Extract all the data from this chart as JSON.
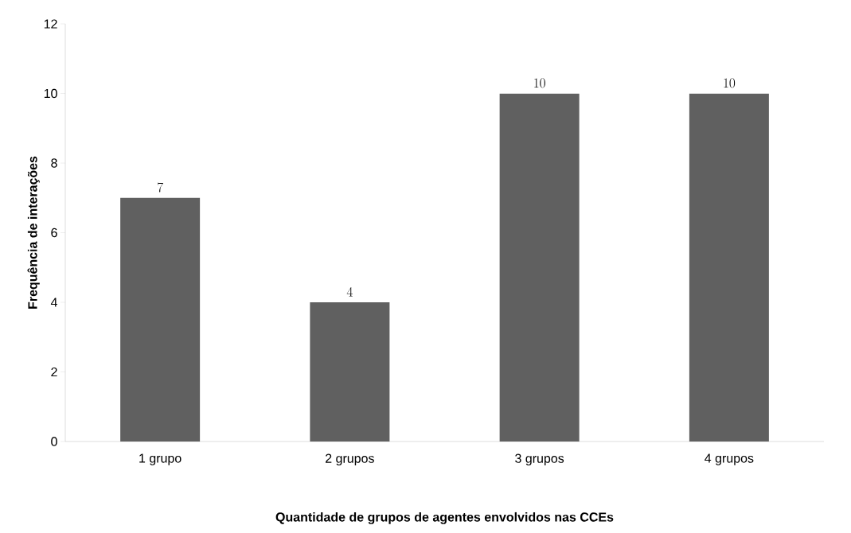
{
  "chart_data": {
    "type": "bar",
    "xlabel": "Quantidade de grupos de agentes envolvidos nas CCEs",
    "ylabel": "Frequência de interações",
    "categories": [
      "1 grupo",
      "2 grupos",
      "3 grupos",
      "4 grupos"
    ],
    "values": [
      7,
      4,
      10,
      10
    ],
    "color": "#606060",
    "ylim": [
      0,
      12
    ],
    "yticks": [
      0,
      2,
      4,
      6,
      8,
      10,
      12
    ],
    "grid": false,
    "data_labels": true
  }
}
